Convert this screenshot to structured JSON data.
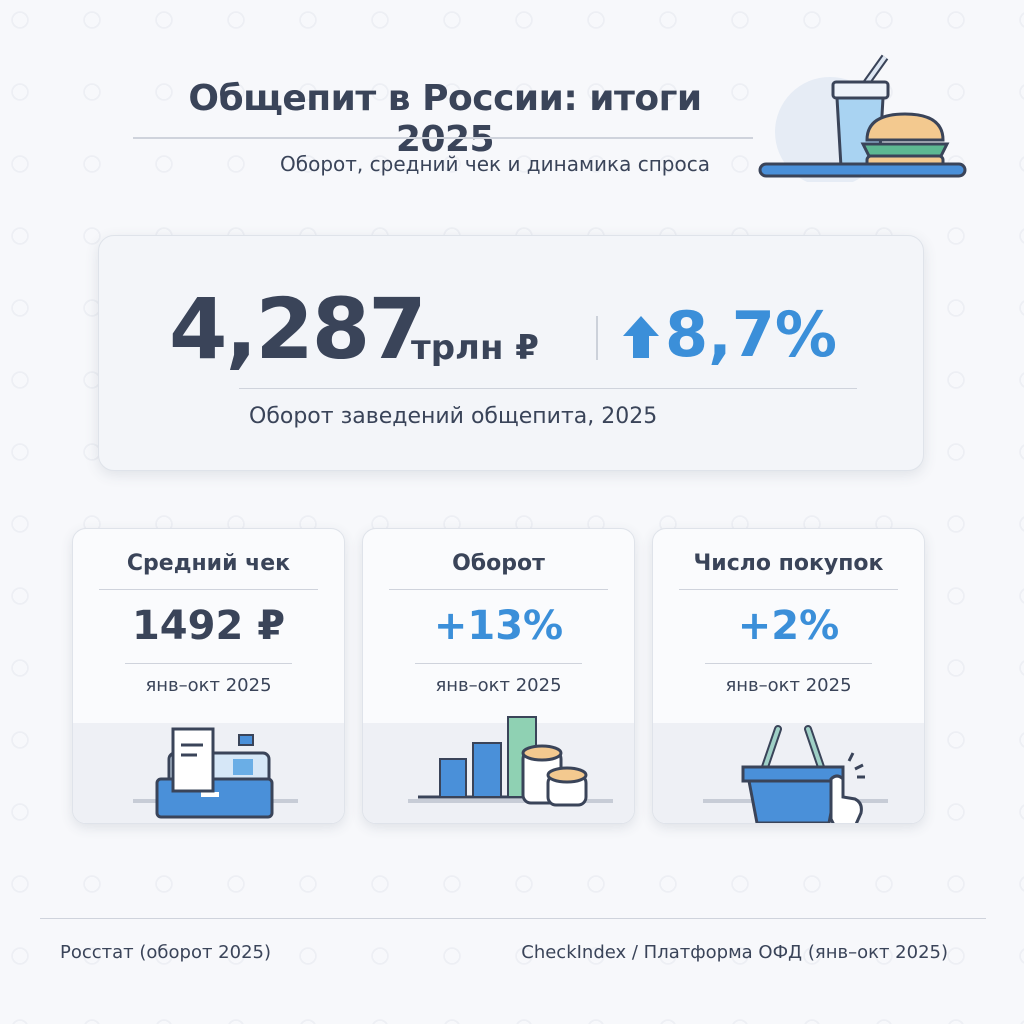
{
  "header": {
    "title": "Общепит в России: итоги 2025",
    "subtitle": "Оборот, средний чек и динамика спроса",
    "illustration_icon": "fast-food-tray-icon"
  },
  "hero": {
    "value": "4,287",
    "unit": "трлн ₽",
    "change": "8,7%",
    "change_icon": "arrow-up-icon",
    "caption": "Оборот заведений общепита, 2025"
  },
  "cards": [
    {
      "title": "Средний чек",
      "value": "1492 ₽",
      "period": "янв–окт 2025",
      "icon": "cash-register-icon",
      "value_color": "#3a4459"
    },
    {
      "title": "Оборот",
      "value": "+13%",
      "period": "янв–окт 2025",
      "icon": "bar-chart-coins-icon",
      "value_color": "#3b8fd9"
    },
    {
      "title": "Число покупок",
      "value": "+2%",
      "period": "янв–окт 2025",
      "icon": "shopping-basket-click-icon",
      "value_color": "#3b8fd9"
    }
  ],
  "footer": {
    "left": "Росстат (оборот 2025)",
    "right": "CheckIndex / Платформа ОФД (янв–окт 2025)"
  },
  "colors": {
    "text": "#3a4459",
    "accent": "#3b8fd9",
    "background": "#f7f8fb"
  }
}
